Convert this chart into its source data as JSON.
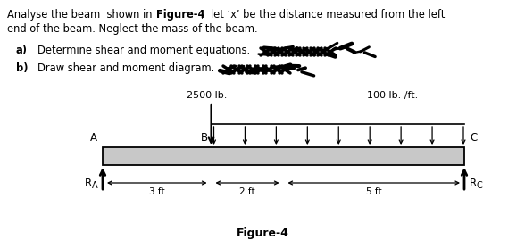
{
  "background_color": "#ffffff",
  "text_color": "#000000",
  "fig_caption": "Figure-4",
  "load_2500": "2500 lb.",
  "load_100": "100 lb. /ft.",
  "label_A": "A",
  "label_B": "B",
  "label_C": "C",
  "label_RA": "R",
  "label_RA_sub": "A",
  "label_RC": "R",
  "label_RC_sub": "C",
  "dim_3ft": "3 ft",
  "dim_2ft": "2 ft",
  "dim_5ft": "5 ft"
}
